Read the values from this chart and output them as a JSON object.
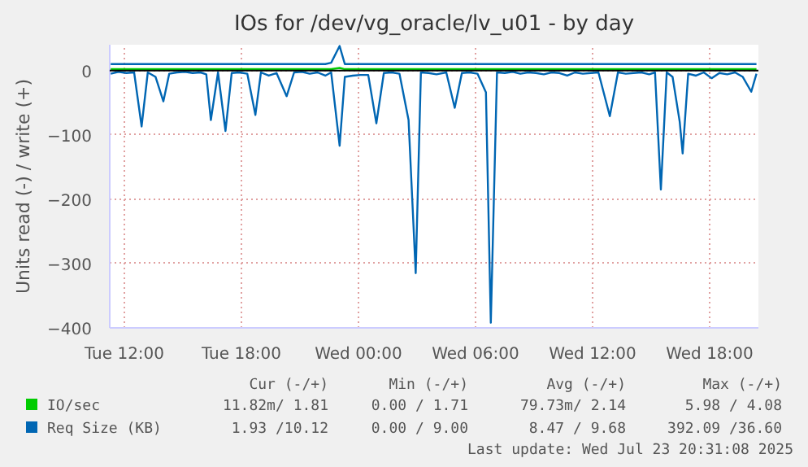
{
  "chart_data": {
    "type": "line",
    "title": "IOs for /dev/vg_oracle/lv_u01 - by day",
    "ylabel": "Units read (-) / write (+)",
    "x": [
      "2025-07-22T11:18",
      "2025-07-22T11:42",
      "2025-07-22T12:06",
      "2025-07-22T12:30",
      "2025-07-22T12:53",
      "2025-07-22T13:12",
      "2025-07-22T13:36",
      "2025-07-22T14:00",
      "2025-07-22T14:18",
      "2025-07-22T14:42",
      "2025-07-22T15:06",
      "2025-07-22T15:30",
      "2025-07-22T15:54",
      "2025-07-22T16:12",
      "2025-07-22T16:26",
      "2025-07-22T16:48",
      "2025-07-22T17:11",
      "2025-07-22T17:30",
      "2025-07-22T17:54",
      "2025-07-22T18:18",
      "2025-07-22T18:43",
      "2025-07-22T19:00",
      "2025-07-22T19:24",
      "2025-07-22T19:48",
      "2025-07-22T20:19",
      "2025-07-22T20:42",
      "2025-07-22T21:06",
      "2025-07-22T21:30",
      "2025-07-22T21:54",
      "2025-07-22T22:18",
      "2025-07-22T22:36",
      "2025-07-22T23:02",
      "2025-07-22T23:18",
      "2025-07-22T23:42",
      "2025-07-23T00:06",
      "2025-07-23T00:30",
      "2025-07-23T00:55",
      "2025-07-23T01:18",
      "2025-07-23T01:42",
      "2025-07-23T02:06",
      "2025-07-23T02:34",
      "2025-07-23T02:56",
      "2025-07-23T03:12",
      "2025-07-23T03:36",
      "2025-07-23T04:00",
      "2025-07-23T04:30",
      "2025-07-23T04:56",
      "2025-07-23T05:18",
      "2025-07-23T05:42",
      "2025-07-23T06:06",
      "2025-07-23T06:32",
      "2025-07-23T06:47",
      "2025-07-23T07:06",
      "2025-07-23T07:30",
      "2025-07-23T07:54",
      "2025-07-23T08:18",
      "2025-07-23T08:42",
      "2025-07-23T09:06",
      "2025-07-23T09:30",
      "2025-07-23T09:54",
      "2025-07-23T10:18",
      "2025-07-23T10:42",
      "2025-07-23T11:06",
      "2025-07-23T11:30",
      "2025-07-23T11:54",
      "2025-07-23T12:18",
      "2025-07-23T12:53",
      "2025-07-23T13:18",
      "2025-07-23T13:42",
      "2025-07-23T14:06",
      "2025-07-23T14:30",
      "2025-07-23T14:54",
      "2025-07-23T15:12",
      "2025-07-23T15:30",
      "2025-07-23T15:48",
      "2025-07-23T16:06",
      "2025-07-23T16:28",
      "2025-07-23T16:37",
      "2025-07-23T16:54",
      "2025-07-23T17:18",
      "2025-07-23T17:42",
      "2025-07-23T18:06",
      "2025-07-23T18:30",
      "2025-07-23T18:54",
      "2025-07-23T19:18",
      "2025-07-23T19:42",
      "2025-07-23T20:08",
      "2025-07-23T20:24"
    ],
    "series": [
      {
        "name": "Req Size (KB)",
        "color": "#0066b3",
        "values": [
          -5,
          -2,
          -4,
          -3,
          -87,
          -3,
          -10,
          -48,
          -5,
          -3,
          -2,
          -4,
          -3,
          -6,
          -77,
          -3,
          -94,
          -4,
          -3,
          -5,
          -69,
          -3,
          -8,
          -4,
          -40,
          -3,
          -2,
          -5,
          -3,
          -8,
          -3,
          -117,
          -10,
          -8,
          -7,
          -7,
          -82,
          -4,
          -3,
          -5,
          -77,
          -315,
          -3,
          -4,
          -6,
          -3,
          -58,
          -4,
          -3,
          -5,
          -34,
          -392,
          -3,
          -4,
          -2,
          -5,
          -3,
          -4,
          -6,
          -3,
          -4,
          -8,
          -3,
          -5,
          -4,
          -3,
          -71,
          -3,
          -5,
          -4,
          -3,
          -6,
          -3,
          -185,
          -3,
          -10,
          -80,
          -129,
          -5,
          -8,
          -3,
          -12,
          -4,
          -6,
          -3,
          -10,
          -33,
          -5
        ]
      },
      {
        "color": "#0066b3",
        "values": [
          10,
          10,
          10,
          10,
          10,
          10,
          10,
          10,
          10,
          10,
          10,
          10,
          10,
          10,
          10,
          10,
          10,
          10,
          10,
          10,
          10,
          10,
          10,
          10,
          10,
          10,
          10,
          10,
          10,
          10,
          12,
          38,
          10,
          10,
          10,
          10,
          10,
          10,
          10,
          10,
          10,
          10,
          10,
          10,
          10,
          10,
          10,
          10,
          10,
          10,
          10,
          10,
          10,
          10,
          10,
          10,
          10,
          10,
          10,
          10,
          10,
          10,
          10,
          10,
          10,
          10,
          10,
          10,
          10,
          10,
          10,
          10,
          10,
          10,
          10,
          10,
          10,
          10,
          10,
          10,
          10,
          10,
          10,
          10,
          10,
          10,
          10,
          10
        ]
      },
      {
        "name": "IO/sec",
        "color": "#00cc00",
        "values": [
          2,
          2,
          2,
          2,
          2,
          2,
          2,
          2,
          2,
          2,
          2,
          2,
          2,
          2,
          2,
          2,
          2,
          2,
          2,
          2,
          2,
          2,
          2,
          2,
          2,
          2,
          2,
          2,
          2,
          2,
          2,
          4,
          2,
          2,
          2,
          2,
          2,
          2,
          2,
          2,
          2,
          2,
          2,
          2,
          2,
          2,
          2,
          2,
          2,
          2,
          2,
          2,
          2,
          2,
          2,
          2,
          2,
          2,
          2,
          2,
          2,
          2,
          2,
          2,
          2,
          2,
          2,
          2,
          2,
          2,
          2,
          2,
          2,
          2,
          2,
          2,
          2,
          2,
          2,
          2,
          2,
          2,
          2,
          2,
          2,
          2,
          2,
          2
        ]
      }
    ],
    "xlim": [
      "2025-07-22T11:15",
      "2025-07-23T20:30"
    ],
    "ylim": [
      -400,
      40
    ],
    "xticks": [
      {
        "value": "2025-07-22T12:00",
        "label": "Tue 12:00"
      },
      {
        "value": "2025-07-22T18:00",
        "label": "Tue 18:00"
      },
      {
        "value": "2025-07-23T00:00",
        "label": "Wed 00:00"
      },
      {
        "value": "2025-07-23T06:00",
        "label": "Wed 06:00"
      },
      {
        "value": "2025-07-23T12:00",
        "label": "Wed 12:00"
      },
      {
        "value": "2025-07-23T18:00",
        "label": "Wed 18:00"
      }
    ],
    "yticks": [
      -400,
      -300,
      -200,
      -100,
      0
    ],
    "ref_lines": [
      {
        "axis": "y",
        "value": 0,
        "color": "#000000"
      }
    ],
    "grid": true,
    "legend": "bottom",
    "marker": "none",
    "line_style": "solid",
    "annotations": [
      "Cur (-/+)",
      "Min (-/+)",
      "Avg (-/+)",
      "Max (-/+)",
      "11.82m/ 1.81",
      "0.00 / 1.71",
      "79.73m/ 2.14",
      "5.98 / 4.08",
      "1.93 /10.12",
      "0.00 / 9.00",
      "8.47 / 9.68",
      "392.09 /36.60",
      "Last update: Wed Jul 23 20:31:08 2025"
    ]
  }
}
